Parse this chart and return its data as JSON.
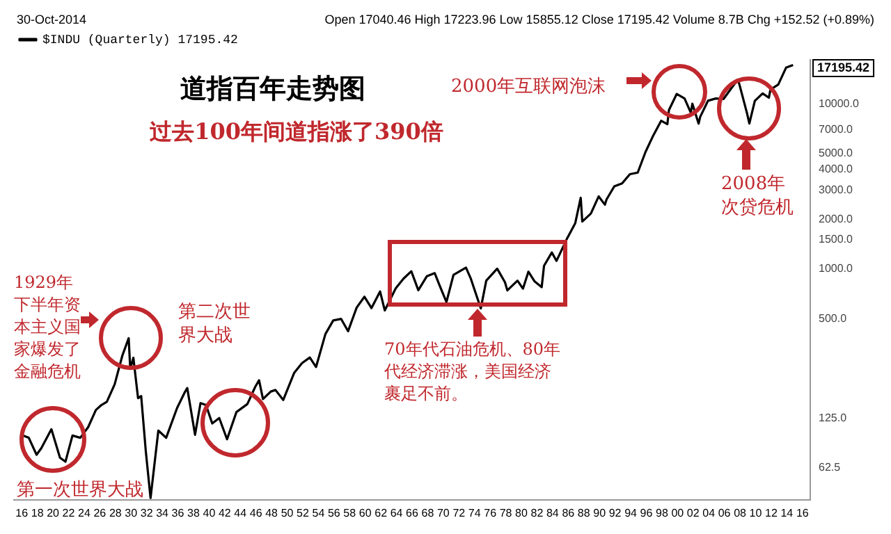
{
  "chart_data": {
    "type": "line",
    "title": "道指百年走势图",
    "subtitle": "过去100年间道指涨了390倍",
    "x": [
      1915.9,
      1916.9,
      1917.9,
      1918.5,
      1919.8,
      1920.9,
      1921.6,
      1922.5,
      1923.5,
      1924.5,
      1925.5,
      1926.2,
      1926.9,
      1927.9,
      1928.9,
      1929.7,
      1929.9,
      1930.3,
      1930.9,
      1931.3,
      1931.9,
      1932.5,
      1933.5,
      1934.5,
      1935.9,
      1936.9,
      1937.2,
      1938.2,
      1938.9,
      1939.6,
      1940.4,
      1941.3,
      1942.3,
      1943.5,
      1944.9,
      1945.9,
      1946.4,
      1946.9,
      1947.9,
      1948.5,
      1949.5,
      1950.9,
      1951.9,
      1952.9,
      1953.7,
      1954.9,
      1955.9,
      1956.9,
      1957.8,
      1958.9,
      1959.9,
      1960.8,
      1961.9,
      1962.5,
      1963.9,
      1964.9,
      1965.9,
      1966.8,
      1967.9,
      1968.9,
      1969.5,
      1970.4,
      1971.3,
      1972.9,
      1973.5,
      1974.8,
      1975.5,
      1976.9,
      1977.9,
      1978.2,
      1979.5,
      1980.2,
      1980.9,
      1981.7,
      1982.6,
      1982.9,
      1983.9,
      1984.5,
      1985.9,
      1986.9,
      1987.6,
      1987.8,
      1988.9,
      1989.9,
      1990.7,
      1990.9,
      1991.9,
      1992.9,
      1993.9,
      1994.9,
      1995.9,
      1996.9,
      1997.9,
      1998.7,
      1998.9,
      1999.9,
      2000.9,
      2001.7,
      2001.9,
      2002.7,
      2002.9,
      2003.9,
      2004.9,
      2005.9,
      2006.9,
      2007.7,
      2007.9,
      2008.9,
      2009.2,
      2009.9,
      2010.9,
      2011.7,
      2011.9,
      2012.9,
      2013.9,
      2014.8
    ],
    "series": [
      {
        "name": "$INDU (Quarterly) 17195.42",
        "color": "#000000",
        "values": [
          99,
          95,
          75,
          82,
          107,
          72,
          68,
          98,
          95,
          110,
          140,
          150,
          157,
          200,
          300,
          381,
          248,
          290,
          165,
          170,
          78,
          41,
          105,
          95,
          144,
          180,
          190,
          99,
          154,
          150,
          116,
          125,
          93,
          136,
          152,
          193,
          212,
          163,
          181,
          185,
          161,
          235,
          269,
          291,
          255,
          404,
          488,
          499,
          420,
          584,
          679,
          580,
          731,
          561,
          763,
          874,
          969,
          744,
          905,
          944,
          800,
          631,
          920,
          1020,
          880,
          577,
          850,
          1005,
          831,
          742,
          850,
          760,
          964,
          840,
          776,
          1046,
          1259,
          1120,
          1547,
          1896,
          2700,
          1939,
          2168,
          2753,
          2452,
          2634,
          3169,
          3301,
          3754,
          3834,
          5117,
          6448,
          7908,
          7539,
          9181,
          11497,
          10787,
          8847,
          10021,
          7592,
          8341,
          10453,
          10783,
          10717,
          12463,
          14000,
          13264,
          8776,
          7608,
          10428,
          11577,
          10900,
          12217,
          13104,
          16576,
          17195.42
        ]
      }
    ],
    "xlim": [
      1915,
      2017
    ],
    "xticks": [
      {
        "value": 1916,
        "label": "16"
      },
      {
        "value": 1918,
        "label": "18"
      },
      {
        "value": 1920,
        "label": "20"
      },
      {
        "value": 1922,
        "label": "22"
      },
      {
        "value": 1924,
        "label": "24"
      },
      {
        "value": 1926,
        "label": "26"
      },
      {
        "value": 1928,
        "label": "28"
      },
      {
        "value": 1930,
        "label": "30"
      },
      {
        "value": 1932,
        "label": "32"
      },
      {
        "value": 1934,
        "label": "34"
      },
      {
        "value": 1936,
        "label": "36"
      },
      {
        "value": 1938,
        "label": "38"
      },
      {
        "value": 1940,
        "label": "40"
      },
      {
        "value": 1942,
        "label": "42"
      },
      {
        "value": 1944,
        "label": "44"
      },
      {
        "value": 1946,
        "label": "46"
      },
      {
        "value": 1948,
        "label": "48"
      },
      {
        "value": 1950,
        "label": "50"
      },
      {
        "value": 1952,
        "label": "52"
      },
      {
        "value": 1954,
        "label": "54"
      },
      {
        "value": 1956,
        "label": "56"
      },
      {
        "value": 1958,
        "label": "58"
      },
      {
        "value": 1960,
        "label": "60"
      },
      {
        "value": 1962,
        "label": "62"
      },
      {
        "value": 1964,
        "label": "64"
      },
      {
        "value": 1966,
        "label": "66"
      },
      {
        "value": 1968,
        "label": "68"
      },
      {
        "value": 1970,
        "label": "70"
      },
      {
        "value": 1972,
        "label": "72"
      },
      {
        "value": 1974,
        "label": "74"
      },
      {
        "value": 1976,
        "label": "76"
      },
      {
        "value": 1978,
        "label": "78"
      },
      {
        "value": 1980,
        "label": "80"
      },
      {
        "value": 1982,
        "label": "82"
      },
      {
        "value": 1984,
        "label": "84"
      },
      {
        "value": 1986,
        "label": "86"
      },
      {
        "value": 1988,
        "label": "88"
      },
      {
        "value": 1990,
        "label": "90"
      },
      {
        "value": 1992,
        "label": "92"
      },
      {
        "value": 1994,
        "label": "94"
      },
      {
        "value": 1996,
        "label": "96"
      },
      {
        "value": 1998,
        "label": "98"
      },
      {
        "value": 2000,
        "label": "00"
      },
      {
        "value": 2002,
        "label": "02"
      },
      {
        "value": 2004,
        "label": "04"
      },
      {
        "value": 2006,
        "label": "06"
      },
      {
        "value": 2008,
        "label": "08"
      },
      {
        "value": 2010,
        "label": "10"
      },
      {
        "value": 2012,
        "label": "12"
      },
      {
        "value": 2014,
        "label": "14"
      },
      {
        "value": 2016,
        "label": "16"
      }
    ],
    "ylim": [
      40,
      18500
    ],
    "log": "y",
    "yticks": [
      {
        "value": 62.5,
        "label": "62.5"
      },
      {
        "value": 125,
        "label": "125.0"
      },
      {
        "value": 500,
        "label": "500.0"
      },
      {
        "value": 1000,
        "label": "1000.0"
      },
      {
        "value": 1500,
        "label": "1500.0"
      },
      {
        "value": 2000,
        "label": "2000.0"
      },
      {
        "value": 3000,
        "label": "3000.0"
      },
      {
        "value": 4000,
        "label": "4000.0"
      },
      {
        "value": 5000,
        "label": "5000.0"
      },
      {
        "value": 7000,
        "label": "7000.0"
      },
      {
        "value": 10000,
        "label": "10000.0"
      }
    ],
    "grid": false,
    "legend": "top left",
    "marker": "none",
    "annotations": [
      "30-Oct-2014",
      "Open 17040.46 High 17223.96 Low 15855.12 Close 17195.42 Volume 8.7B Chg +152.52 (+0.89%)",
      "第一次世界大战",
      "1929年下半年资本主义国家爆发了金融危机",
      "第二次世界大战",
      "70年代石油危机、80年代经济滞涨，美国经济裹足不前。",
      "2000年互联网泡沫",
      "2008年次贷危机",
      "17195.42"
    ]
  }
}
